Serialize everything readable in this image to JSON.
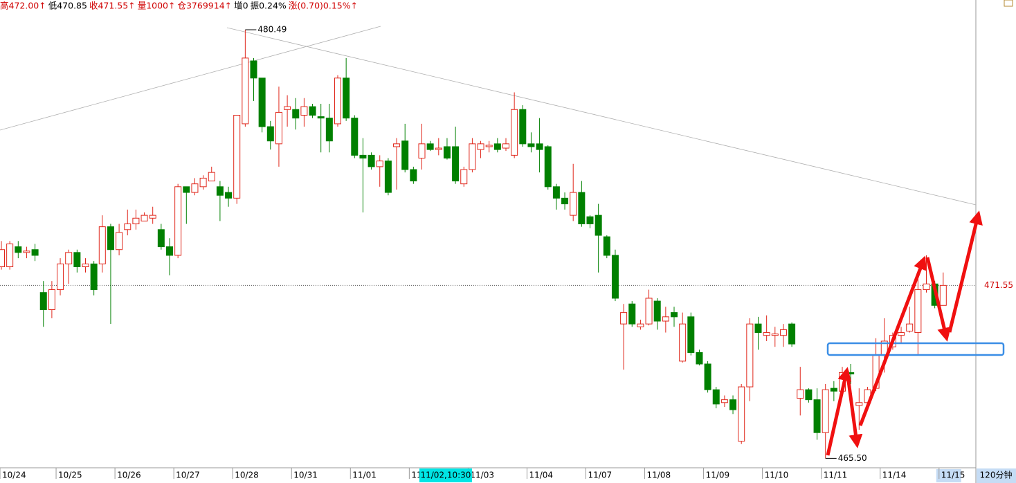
{
  "chart_data": {
    "type": "candlestick",
    "info_bar": [
      {
        "text": "高472.00↑",
        "color": "#d00000"
      },
      {
        "text": "低470.85",
        "color": "#000000"
      },
      {
        "text": "收471.55↑",
        "color": "#d00000"
      },
      {
        "text": "量1000↑",
        "color": "#d00000"
      },
      {
        "text": "仓3769914↑",
        "color": "#d00000"
      },
      {
        "text": "增0",
        "color": "#000000"
      },
      {
        "text": "振0.24%",
        "color": "#000000"
      },
      {
        "text": "涨(0.70)0.15%↑",
        "color": "#d00000"
      }
    ],
    "categories": [
      "10/24",
      null,
      null,
      null,
      null,
      null,
      null,
      "10/25",
      null,
      null,
      null,
      null,
      null,
      null,
      "10/26",
      null,
      null,
      null,
      null,
      null,
      null,
      "10/27",
      null,
      null,
      null,
      null,
      null,
      null,
      "10/28",
      null,
      null,
      null,
      null,
      null,
      null,
      "10/31",
      null,
      null,
      null,
      null,
      null,
      null,
      "11/01",
      null,
      null,
      null,
      null,
      null,
      null,
      "11/02",
      null,
      null,
      null,
      null,
      null,
      null,
      "11/03",
      null,
      null,
      null,
      null,
      null,
      null,
      "11/04",
      null,
      null,
      null,
      null,
      null,
      null,
      "11/07",
      null,
      null,
      null,
      null,
      null,
      null,
      "11/08",
      null,
      null,
      null,
      null,
      null,
      null,
      "11/09",
      null,
      null,
      null,
      null,
      null,
      null,
      "11/10",
      null,
      null,
      null,
      null,
      null,
      null,
      "11/11",
      null,
      null,
      null,
      null,
      null,
      null,
      "11/14",
      null,
      null,
      null,
      null,
      null,
      null,
      "11/15"
    ],
    "open": [
      472.2,
      472.2,
      472.9,
      472.7,
      472.8,
      471.3,
      470.7,
      471.4,
      472.3,
      472.7,
      472.2,
      472.3,
      472.3,
      473.6,
      472.8,
      473.5,
      473.7,
      473.8,
      473.9,
      473.5,
      472.9,
      472.6,
      475.0,
      474.8,
      475.0,
      475.2,
      475.0,
      474.8,
      474.6,
      477.2,
      479.4,
      478.8,
      477.1,
      476.5,
      477.7,
      477.7,
      477.5,
      477.8,
      477.45,
      477.4,
      477.2,
      478.8,
      477.4,
      476.1,
      476.1,
      475.7,
      475.9,
      476.4,
      476.6,
      475.6,
      476.0,
      476.5,
      476.3,
      476.4,
      476.4,
      475.1,
      475.6,
      476.3,
      476.4,
      476.5,
      476.35,
      476.1,
      477.7,
      476.5,
      476.5,
      476.4,
      475.0,
      474.6,
      474.0,
      474.8,
      473.95,
      474.0,
      473.25,
      472.6,
      470.2,
      470.9,
      470.1,
      470.2,
      471.0,
      470.3,
      470.6,
      468.9,
      470.45,
      469.2,
      468.8,
      467.9,
      467.45,
      467.55,
      466.1,
      468.0,
      470.2,
      469.8,
      469.8,
      469.8,
      470.2,
      467.6,
      467.9,
      467.55,
      466.4,
      467.95,
      467.85,
      468.5,
      467.35,
      467.45,
      467.95,
      469.1,
      469.4,
      469.8,
      469.95,
      469.9,
      471.4,
      471.6,
      470.85
    ],
    "high": [
      473.1,
      473.1,
      473.1,
      472.9,
      473.0,
      471.7,
      471.7,
      472.5,
      472.8,
      472.8,
      472.5,
      472.4,
      474.0,
      473.7,
      473.7,
      474.2,
      474.2,
      474.1,
      474.3,
      473.7,
      473.2,
      475.1,
      475.0,
      475.3,
      475.4,
      475.7,
      475.2,
      475.0,
      477.5,
      480.49,
      479.5,
      478.8,
      477.3,
      478.5,
      478.2,
      478.1,
      478.1,
      477.9,
      477.9,
      477.9,
      478.9,
      479.5,
      477.5,
      476.7,
      476.2,
      476.1,
      476.0,
      476.7,
      477.2,
      475.7,
      477.2,
      476.6,
      476.7,
      476.7,
      477.1,
      475.7,
      476.7,
      476.6,
      476.6,
      476.7,
      476.7,
      478.3,
      477.85,
      476.9,
      477.4,
      476.45,
      475.1,
      474.8,
      475.8,
      475.2,
      474.0,
      474.4,
      473.3,
      472.8,
      470.9,
      471.0,
      470.35,
      471.4,
      471.1,
      470.8,
      470.8,
      470.6,
      470.6,
      469.3,
      468.9,
      468.0,
      467.7,
      467.7,
      468.1,
      470.4,
      470.45,
      470.5,
      470.1,
      470.2,
      470.25,
      468.7,
      467.95,
      467.95,
      468.1,
      468.2,
      468.7,
      468.8,
      467.95,
      468.0,
      469.7,
      470.4,
      469.9,
      470.1,
      470.8,
      471.97,
      472.6,
      471.7,
      472.0
    ],
    "low": [
      472.1,
      472.1,
      472.5,
      472.5,
      472.4,
      470.1,
      470.4,
      471.2,
      471.6,
      472.0,
      472.0,
      471.2,
      472.0,
      470.2,
      472.6,
      473.3,
      473.5,
      473.8,
      473.7,
      472.8,
      471.9,
      472.5,
      473.7,
      474.7,
      474.9,
      475.2,
      473.8,
      474.3,
      474.4,
      477.1,
      478.0,
      476.9,
      476.3,
      475.7,
      477.1,
      477.0,
      477.1,
      477.4,
      476.2,
      476.2,
      477.1,
      477.3,
      476.0,
      474.1,
      475.6,
      475.0,
      474.7,
      474.9,
      475.5,
      475.1,
      475.6,
      476.25,
      476.1,
      475.95,
      475.1,
      475.0,
      475.5,
      476.0,
      476.2,
      476.2,
      476.25,
      476.0,
      476.4,
      476.2,
      475.5,
      474.9,
      474.2,
      474.2,
      473.8,
      473.6,
      473.55,
      472.0,
      472.5,
      471.0,
      468.6,
      470.1,
      470.0,
      470.15,
      470.0,
      469.9,
      470.1,
      468.85,
      469.1,
      468.75,
      467.8,
      467.25,
      467.3,
      467.05,
      466.0,
      467.5,
      469.3,
      469.6,
      469.4,
      469.4,
      469.4,
      467.0,
      467.45,
      466.15,
      465.5,
      467.5,
      467.8,
      468.1,
      466.5,
      467.4,
      467.85,
      468.5,
      469.3,
      469.55,
      469.9,
      469.1,
      471.3,
      470.75,
      470.85
    ],
    "close": [
      472.8,
      473.0,
      472.7,
      472.75,
      472.6,
      470.7,
      471.4,
      472.3,
      472.7,
      472.2,
      472.3,
      471.4,
      473.6,
      472.8,
      473.4,
      473.7,
      473.9,
      474.0,
      474.0,
      472.9,
      472.6,
      475.0,
      474.8,
      475.1,
      475.3,
      475.5,
      474.7,
      474.6,
      477.5,
      479.5,
      478.8,
      477.1,
      476.6,
      477.6,
      477.8,
      477.4,
      477.8,
      477.5,
      477.4,
      476.6,
      478.8,
      477.4,
      476.1,
      476.0,
      475.7,
      475.9,
      474.8,
      476.5,
      475.6,
      475.2,
      476.5,
      476.3,
      476.35,
      476.0,
      475.2,
      475.6,
      476.5,
      476.5,
      476.45,
      476.3,
      476.5,
      477.7,
      476.5,
      476.4,
      476.3,
      475.0,
      474.6,
      474.4,
      474.8,
      473.7,
      473.7,
      473.3,
      472.6,
      471.1,
      470.6,
      470.2,
      470.2,
      471.1,
      470.3,
      470.45,
      470.45,
      470.2,
      469.2,
      468.8,
      467.9,
      467.4,
      467.55,
      467.2,
      468.0,
      470.2,
      469.9,
      469.9,
      469.85,
      470.0,
      469.5,
      467.9,
      467.55,
      466.4,
      467.9,
      467.85,
      468.5,
      468.45,
      467.45,
      467.9,
      469.1,
      469.6,
      469.8,
      469.9,
      470.2,
      471.4,
      471.6,
      470.85,
      471.55
    ],
    "up_color": "#e0261a",
    "down_color": "#008000",
    "ylim": [
      465.17,
      481.53
    ],
    "extreme_labels": [
      {
        "index": 29,
        "value": 480.49,
        "label": "480.49"
      },
      {
        "index": 98,
        "value": 465.5,
        "label": "465.50"
      }
    ],
    "last_price": 471.55,
    "cursor_label": "11/02,10:30",
    "period": "120分钟"
  }
}
